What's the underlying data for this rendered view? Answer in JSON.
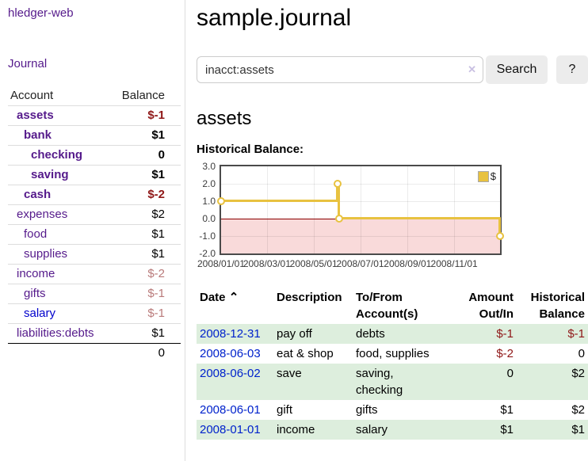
{
  "app": {
    "brand": "hledger-web",
    "nav_journal": "Journal"
  },
  "colors": {
    "accent_purple": "#551a8b",
    "link_blue": "#0000cc",
    "negative_dark": "#8f1717",
    "negative_light": "#b97a7a",
    "row_green": "#ddeedd",
    "chart_line": "#e8c240",
    "chart_negative_bg": "#f9dada",
    "zero_line": "#8b0000"
  },
  "sidebar": {
    "header": {
      "account": "Account",
      "balance": "Balance"
    },
    "accounts": [
      {
        "name": "assets",
        "level": 1,
        "balance": "$-1",
        "bold": true,
        "neg": true,
        "blue": false
      },
      {
        "name": "bank",
        "level": 2,
        "balance": "$1",
        "bold": true,
        "neg": false,
        "blue": false
      },
      {
        "name": "checking",
        "level": 3,
        "balance": "0",
        "bold": true,
        "neg": false,
        "blue": false
      },
      {
        "name": "saving",
        "level": 3,
        "balance": "$1",
        "bold": true,
        "neg": false,
        "blue": false
      },
      {
        "name": "cash",
        "level": 2,
        "balance": "$-2",
        "bold": true,
        "neg": true,
        "blue": false
      },
      {
        "name": "expenses",
        "level": 1,
        "balance": "$2",
        "bold": false,
        "neg": false,
        "blue": false
      },
      {
        "name": "food",
        "level": 2,
        "balance": "$1",
        "bold": false,
        "neg": false,
        "blue": false
      },
      {
        "name": "supplies",
        "level": 2,
        "balance": "$1",
        "bold": false,
        "neg": false,
        "blue": false
      },
      {
        "name": "income",
        "level": 1,
        "balance": "$-2",
        "bold": false,
        "neg": true,
        "blue": false
      },
      {
        "name": "gifts",
        "level": 2,
        "balance": "$-1",
        "bold": false,
        "neg": true,
        "blue": false
      },
      {
        "name": "salary",
        "level": 2,
        "balance": "$-1",
        "bold": false,
        "neg": true,
        "blue": true
      },
      {
        "name": "liabilities:debts",
        "level": 1,
        "balance": "$1",
        "bold": false,
        "neg": false,
        "blue": false
      }
    ],
    "total": "0"
  },
  "header": {
    "title": "sample.journal"
  },
  "search": {
    "value": "inacct:assets",
    "clear_icon": "✕",
    "button": "Search",
    "help_button": "?"
  },
  "account_page": {
    "title": "assets",
    "chart_label": "Historical Balance:"
  },
  "chart_data": {
    "type": "line",
    "step": true,
    "title": "Historical Balance of assets",
    "legend": "$",
    "legend_position": "top-right",
    "grid": true,
    "x_range": [
      "2008-01-01",
      "2008-12-31"
    ],
    "ylim": [
      -2.0,
      3.0
    ],
    "y_ticks": [
      3.0,
      2.0,
      1.0,
      0.0,
      -1.0,
      -2.0
    ],
    "x_ticks": [
      "2008/01/01",
      "2008/03/01",
      "2008/05/01",
      "2008/07/01",
      "2008/09/01",
      "2008/11/01"
    ],
    "series": [
      {
        "name": "$",
        "points": [
          [
            "2008-01-01",
            1
          ],
          [
            "2008-06-01",
            2
          ],
          [
            "2008-06-03",
            0
          ],
          [
            "2008-12-31",
            -1
          ]
        ]
      }
    ]
  },
  "register": {
    "columns": [
      "Date",
      "Description",
      "To/From Account(s)",
      "Amount Out/In",
      "Historical Balance"
    ],
    "sort_icon": "⌃",
    "rows": [
      {
        "date": "2008-12-31",
        "description": "pay off",
        "accounts": "debts",
        "amount": "$-1",
        "amount_neg": true,
        "balance": "$-1",
        "balance_neg": true
      },
      {
        "date": "2008-06-03",
        "description": "eat & shop",
        "accounts": "food, supplies",
        "amount": "$-2",
        "amount_neg": true,
        "balance": "0",
        "balance_neg": false
      },
      {
        "date": "2008-06-02",
        "description": "save",
        "accounts": "saving, checking",
        "amount": "0",
        "amount_neg": false,
        "balance": "$2",
        "balance_neg": false
      },
      {
        "date": "2008-06-01",
        "description": "gift",
        "accounts": "gifts",
        "amount": "$1",
        "amount_neg": false,
        "balance": "$2",
        "balance_neg": false
      },
      {
        "date": "2008-01-01",
        "description": "income",
        "accounts": "salary",
        "amount": "$1",
        "amount_neg": false,
        "balance": "$1",
        "balance_neg": false
      }
    ]
  }
}
